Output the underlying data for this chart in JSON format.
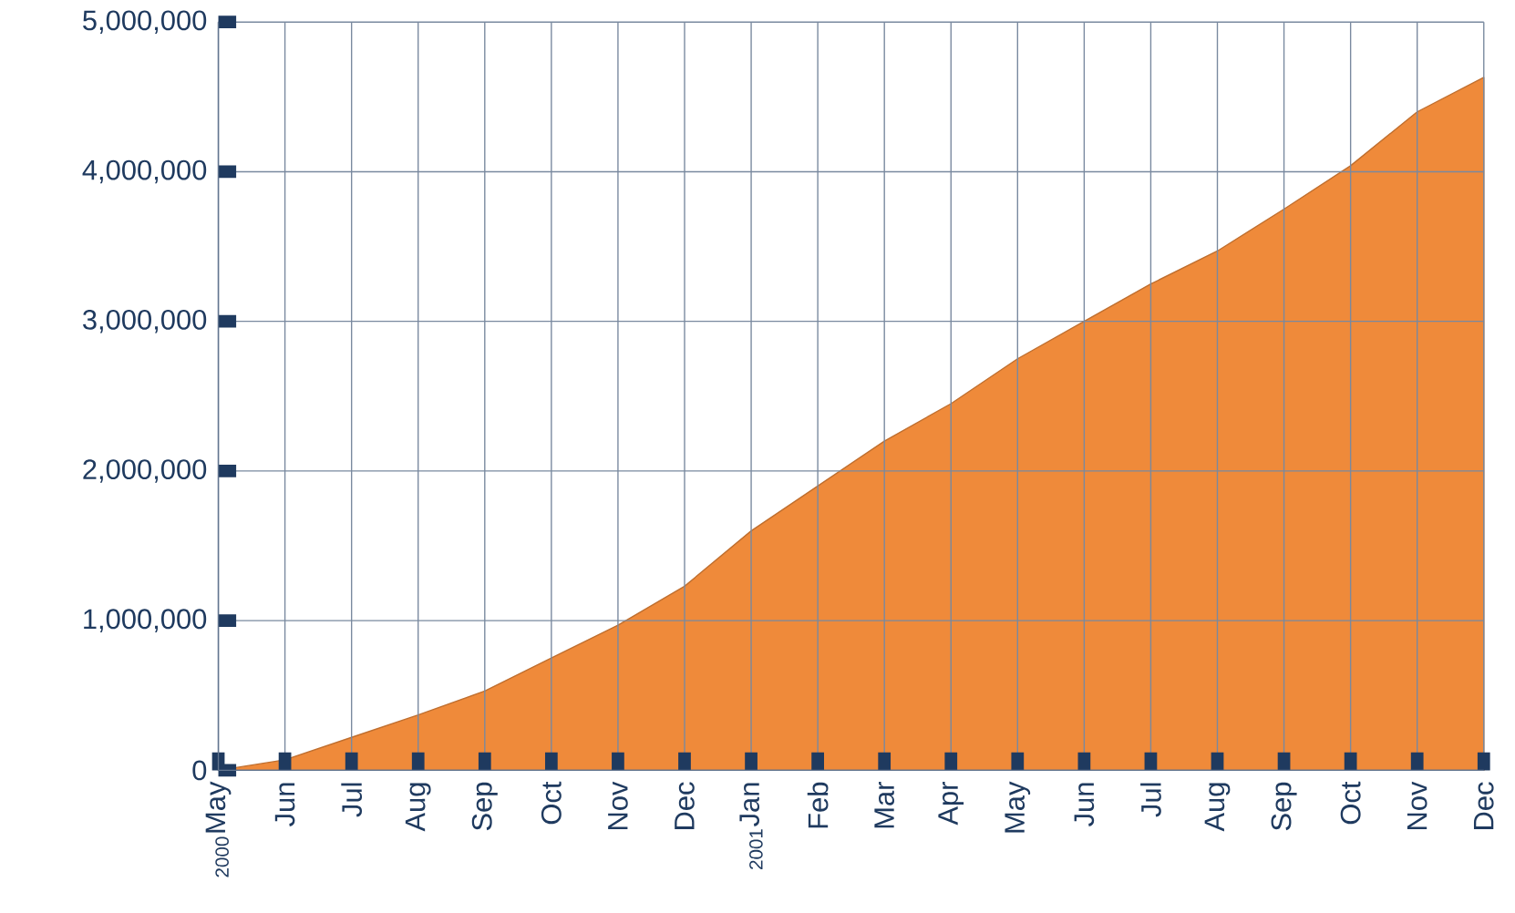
{
  "chart_data": {
    "type": "area",
    "categories": [
      "$_{2000}$May",
      "Jun",
      "Jul",
      "Aug",
      "Sep",
      "Oct",
      "Nov",
      "Dec",
      "$_{2001}$Jan",
      "Feb",
      "Mar",
      "Apr",
      "May",
      "Jun",
      "Jul",
      "Aug",
      "Sep",
      "Oct",
      "Nov",
      "Dec"
    ],
    "values": [
      0,
      70000,
      220000,
      370000,
      530000,
      750000,
      970000,
      1230000,
      1600000,
      1900000,
      2200000,
      2450000,
      2750000,
      3000000,
      3250000,
      3470000,
      3750000,
      4040000,
      4400000,
      4630000
    ],
    "color": "#ef8a3a",
    "ylim": [
      0,
      5000000
    ],
    "yticks": [
      {
        "value": 0,
        "label": "0"
      },
      {
        "value": 1000000,
        "label": "1,000,000"
      },
      {
        "value": 2000000,
        "label": "2,000,000"
      },
      {
        "value": 3000000,
        "label": "3,000,000"
      },
      {
        "value": 4000000,
        "label": "4,000,000"
      },
      {
        "value": 5000000,
        "label": "5,000,000"
      }
    ],
    "grid": true
  }
}
